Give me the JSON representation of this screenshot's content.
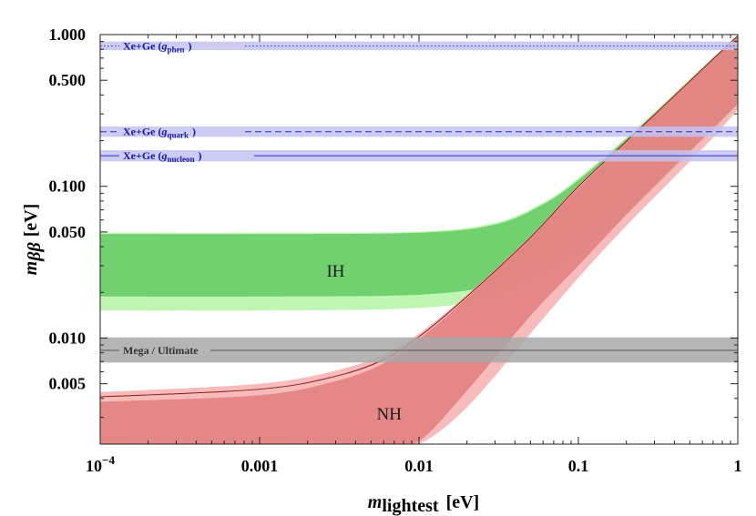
{
  "chart_data": {
    "type": "area",
    "x_scale": "log",
    "y_scale": "log",
    "xlim": [
      0.0001,
      1
    ],
    "ylim": [
      0.002,
      1.0
    ],
    "xlabel": {
      "var": "m",
      "sub": "lightest",
      "unit": "[eV]"
    },
    "ylabel": {
      "var": "m",
      "sub": "ββ",
      "unit": "[eV]"
    },
    "x_ticks": [
      {
        "value": 0.0001,
        "label": "10",
        "sup": "−4"
      },
      {
        "value": 0.001,
        "label": "0.001"
      },
      {
        "value": 0.01,
        "label": "0.01"
      },
      {
        "value": 0.1,
        "label": "0.1"
      },
      {
        "value": 1,
        "label": "1"
      }
    ],
    "y_ticks": [
      {
        "value": 0.005,
        "label": "0.005"
      },
      {
        "value": 0.01,
        "label": "0.010"
      },
      {
        "value": 0.05,
        "label": "0.050"
      },
      {
        "value": 0.1,
        "label": "0.100"
      },
      {
        "value": 0.5,
        "label": "0.500"
      },
      {
        "value": 1.0,
        "label": "1.000"
      }
    ],
    "regions": [
      {
        "name": "IH",
        "label": "IH",
        "label_at": [
          0.003,
          0.028
        ],
        "color_outer": "#b3f5a5",
        "color_inner": "#5ec85e",
        "outer": {
          "x": [
            0.0001,
            0.001,
            0.01,
            0.03,
            0.06,
            0.1,
            0.2,
            0.4,
            0.7,
            1.0
          ],
          "lower": [
            0.0152,
            0.0152,
            0.0158,
            0.0188,
            0.027,
            0.037,
            0.067,
            0.13,
            0.23,
            0.33
          ],
          "upper": [
            0.0495,
            0.0495,
            0.0503,
            0.0575,
            0.078,
            0.113,
            0.21,
            0.41,
            0.71,
            1.0
          ]
        },
        "inner": {
          "x": [
            0.0001,
            0.001,
            0.01,
            0.03,
            0.06,
            0.1,
            0.2,
            0.4,
            0.7,
            1.0
          ],
          "lower": [
            0.0188,
            0.0188,
            0.0193,
            0.0225,
            0.031,
            0.043,
            0.08,
            0.155,
            0.27,
            0.38
          ],
          "upper": [
            0.0485,
            0.0485,
            0.0494,
            0.056,
            0.076,
            0.11,
            0.205,
            0.4,
            0.7,
            0.98
          ]
        }
      },
      {
        "name": "NH",
        "label": "NH",
        "label_at": [
          0.0065,
          0.0032
        ],
        "color_outer": "#f7afaf",
        "color_inner": "#e07b7b",
        "outer": {
          "x": [
            0.0001,
            0.001,
            0.003,
            0.006,
            0.01,
            0.02,
            0.05,
            0.1,
            0.2,
            0.4,
            0.7,
            1.0
          ],
          "lower": [
            null,
            null,
            null,
            null,
            0.002,
            0.0035,
            0.0107,
            0.025,
            0.055,
            0.115,
            0.21,
            0.32
          ],
          "upper": [
            0.0044,
            0.005,
            0.0061,
            0.0078,
            0.0107,
            0.0193,
            0.047,
            0.102,
            0.2,
            0.4,
            0.7,
            0.99
          ]
        },
        "inner": {
          "x": [
            0.0001,
            0.001,
            0.003,
            0.006,
            0.01,
            0.02,
            0.05,
            0.1,
            0.2,
            0.4,
            0.7,
            1.0
          ],
          "lower": [
            null,
            null,
            null,
            null,
            0.0021,
            0.0045,
            0.014,
            0.03,
            0.065,
            0.135,
            0.24,
            0.35
          ],
          "upper": [
            0.0038,
            0.0042,
            0.0052,
            0.0068,
            0.0098,
            0.0183,
            0.045,
            0.097,
            0.195,
            0.39,
            0.68,
            0.97
          ]
        },
        "boundary_upper": [
          0.0041,
          0.0046,
          0.0056,
          0.0072,
          0.0102,
          0.0188,
          0.046,
          0.1,
          0.198,
          0.395,
          0.69,
          0.98
        ]
      }
    ],
    "bands": [
      {
        "name": "xe-ge-gphen",
        "label_text": "Xe+Ge (",
        "label_var": "g",
        "label_sub": "phen",
        "label_close": ")",
        "center": 0.84,
        "range": [
          0.79,
          0.9
        ],
        "line_style": "dotted",
        "band_color": "#c3c3f0",
        "line_color": "#2a2ad6",
        "text_color": "#1515b0"
      },
      {
        "name": "xe-ge-gquark",
        "label_text": "Xe+Ge (",
        "label_var": "g",
        "label_sub": "quark",
        "label_close": ")",
        "center": 0.229,
        "range": [
          0.212,
          0.248
        ],
        "line_style": "dashed",
        "band_color": "#c3c3f0",
        "line_color": "#2a2ad6",
        "text_color": "#1515b0"
      },
      {
        "name": "xe-ge-gnucleon",
        "label_text": "Xe+Ge (",
        "label_var": "g",
        "label_sub": "nucleon",
        "label_close": ")",
        "center": 0.159,
        "range": [
          0.146,
          0.173
        ],
        "line_style": "solid",
        "band_color": "#c3c3f0",
        "line_color": "#2a2ad6",
        "text_color": "#1515b0"
      },
      {
        "name": "mega-ultimate",
        "label_text": "Mega / Ultimate",
        "label_var": "",
        "label_sub": "",
        "label_close": "",
        "center": 0.0083,
        "range": [
          0.0069,
          0.0101
        ],
        "line_style": "solid",
        "band_color": "#a8a8a8",
        "line_color": "#555555",
        "text_color": "#333333"
      }
    ]
  }
}
